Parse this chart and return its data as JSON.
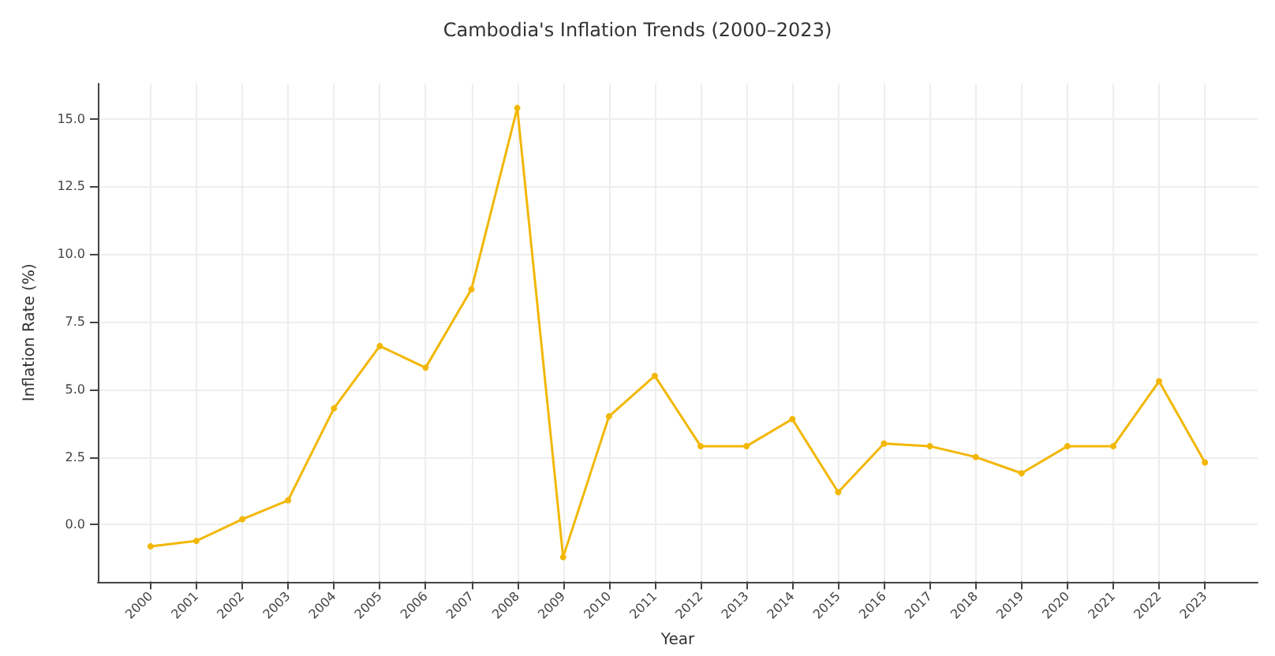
{
  "chart_data": {
    "type": "line",
    "title": "Cambodia's Inflation Trends (2000–2023)",
    "xlabel": "Year",
    "ylabel": "Inflation Rate (%)",
    "categories": [
      "2000",
      "2001",
      "2002",
      "2003",
      "2004",
      "2005",
      "2006",
      "2007",
      "2008",
      "2009",
      "2010",
      "2011",
      "2012",
      "2013",
      "2014",
      "2015",
      "2016",
      "2017",
      "2018",
      "2019",
      "2020",
      "2021",
      "2022",
      "2023"
    ],
    "series": [
      {
        "color": "#f2b705",
        "values": [
          -0.8,
          -0.6,
          0.2,
          0.9,
          4.3,
          6.6,
          5.8,
          8.7,
          15.4,
          -1.2,
          4.0,
          5.5,
          2.9,
          2.9,
          3.9,
          1.2,
          3.0,
          2.9,
          2.5,
          1.9,
          2.9,
          2.9,
          5.3,
          2.3
        ]
      }
    ],
    "ylim": [
      -2.1,
      16.3
    ],
    "yticks": [
      {
        "value": 0,
        "label": "0.0"
      },
      2.5,
      {
        "value": 5,
        "label": "5.0"
      },
      7.5,
      {
        "value": 10,
        "label": "10.0"
      },
      12.5,
      {
        "value": 15,
        "label": "15.0"
      }
    ],
    "grid": true,
    "marker": "circle",
    "line_style": "solid"
  }
}
